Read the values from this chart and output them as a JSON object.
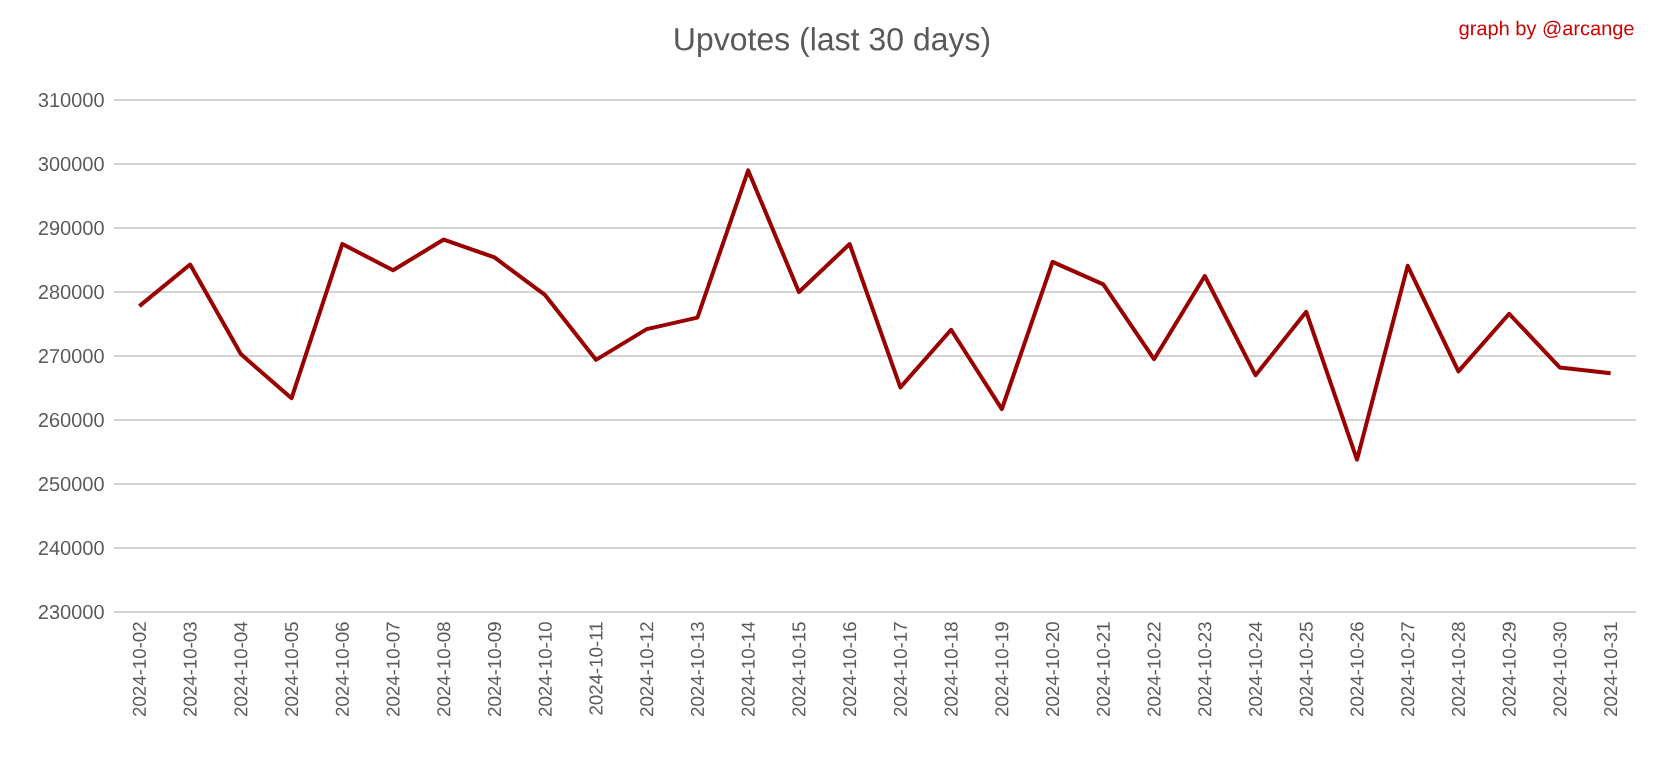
{
  "chart_data": {
    "type": "line",
    "title": "Upvotes (last 30 days)",
    "annotations": [
      "graph by @arcange"
    ],
    "categories": [
      "2024-10-02",
      "2024-10-03",
      "2024-10-04",
      "2024-10-05",
      "2024-10-06",
      "2024-10-07",
      "2024-10-08",
      "2024-10-09",
      "2024-10-10",
      "2024-10-11",
      "2024-10-12",
      "2024-10-13",
      "2024-10-14",
      "2024-10-15",
      "2024-10-16",
      "2024-10-17",
      "2024-10-18",
      "2024-10-19",
      "2024-10-20",
      "2024-10-21",
      "2024-10-22",
      "2024-10-23",
      "2024-10-24",
      "2024-10-25",
      "2024-10-26",
      "2024-10-27",
      "2024-10-28",
      "2024-10-29",
      "2024-10-30",
      "2024-10-31"
    ],
    "series": [
      {
        "color": "#990000",
        "values": [
          277800,
          284300,
          270300,
          263400,
          287500,
          283400,
          288200,
          285400,
          279500,
          269400,
          274200,
          276000,
          299000,
          280000,
          287500,
          265100,
          274100,
          261700,
          284700,
          281200,
          269500,
          282500,
          267000,
          276900,
          253800,
          284100,
          267600,
          276600,
          268200,
          267300
        ]
      }
    ],
    "ylim": [
      230000,
      310000
    ],
    "yticks": [
      230000,
      240000,
      250000,
      260000,
      270000,
      280000,
      290000,
      300000,
      310000
    ],
    "grid": "y",
    "marker": "none",
    "line_style": "solid"
  }
}
